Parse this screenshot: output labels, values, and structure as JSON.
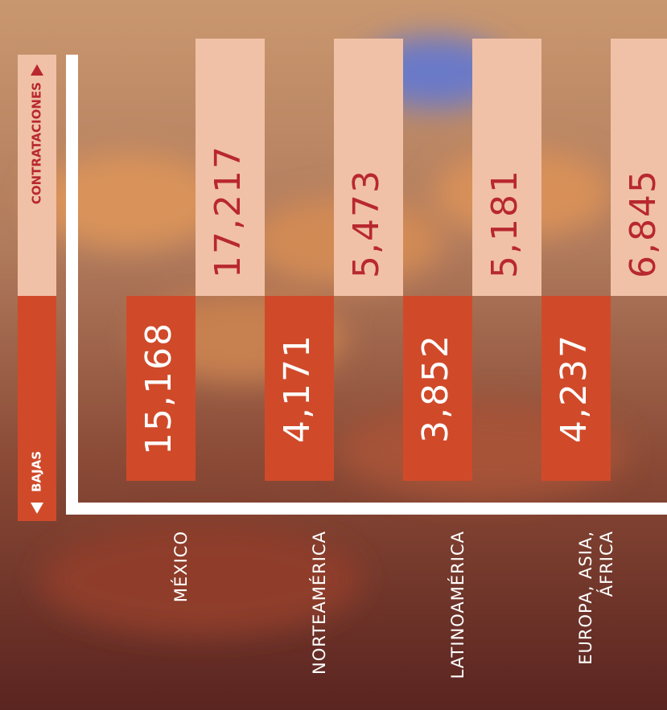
{
  "chart_data": {
    "type": "bar",
    "categories": [
      "MÉXICO",
      "NORTEAMÉRICA",
      "LATINOAMÉRICA",
      "EUROPA, ASIA, ÁFRICA"
    ],
    "series": [
      {
        "name": "BAJAS",
        "color": "#d04a2a",
        "values": [
          15168,
          4171,
          3852,
          4237
        ],
        "value_labels": [
          "15,168",
          "4,171",
          "3,852",
          "4,237"
        ]
      },
      {
        "name": "CONTRATACIONES",
        "color": "#f0c1a6",
        "values": [
          17217,
          5473,
          5181,
          6845
        ],
        "value_labels": [
          "17,217",
          "5,473",
          "5,181",
          "6,845"
        ]
      }
    ]
  }
}
